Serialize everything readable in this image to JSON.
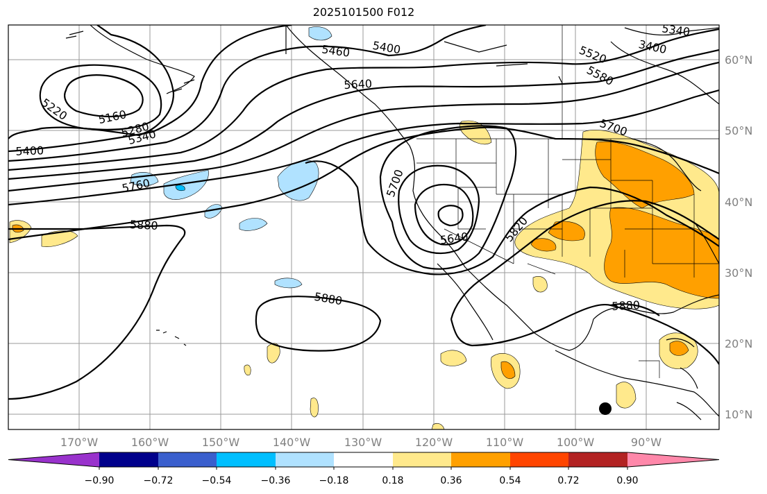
{
  "map": {
    "title": "2025101500 F012",
    "lon_ticks": [
      "170°W",
      "160°W",
      "150°W",
      "140°W",
      "130°W",
      "120°W",
      "110°W",
      "100°W",
      "90°W"
    ],
    "lat_ticks": [
      "60°N",
      "50°N",
      "40°N",
      "30°N",
      "20°N",
      "10°N"
    ],
    "contour_labels": [
      "5220",
      "5160",
      "5280",
      "5340",
      "5400",
      "5460",
      "5400",
      "5640",
      "5520",
      "5580",
      "3400",
      "5340",
      "5700",
      "5760",
      "5880",
      "5700",
      "5640",
      "5820",
      "5880",
      "5880"
    ],
    "colorbar": {
      "ticks": [
        "−0.90",
        "−0.72",
        "−0.54",
        "−0.36",
        "−0.18",
        "0.18",
        "0.36",
        "0.54",
        "0.72",
        "0.90"
      ],
      "colors": [
        "#9932cc",
        "#00008b",
        "#3a5fcd",
        "#00bfff",
        "#b0e2ff",
        "#ffffff",
        "#ffe98c",
        "#ffa000",
        "#ff4500",
        "#b22222",
        "#ff88aa"
      ]
    }
  }
}
